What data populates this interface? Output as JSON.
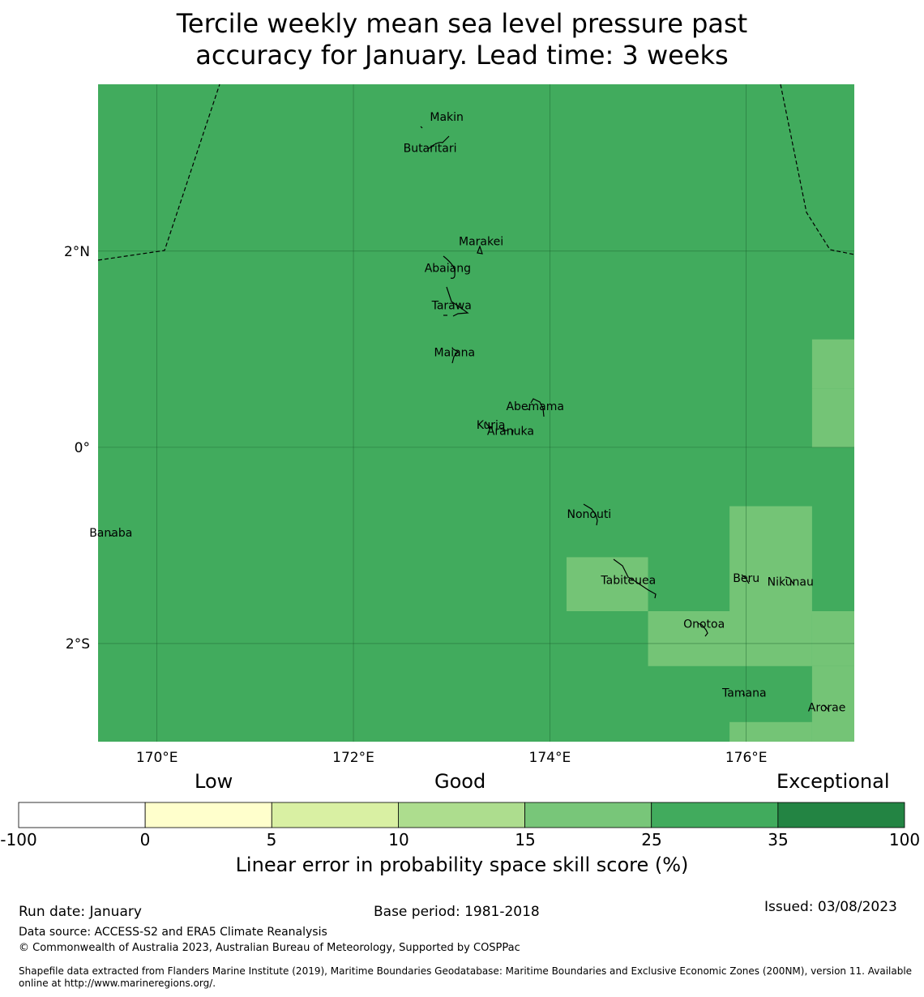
{
  "title": {
    "line1": "Tercile weekly mean sea level pressure past",
    "line2": "accuracy for January. Lead time: 3 weeks"
  },
  "map": {
    "lon_range": [
      169.4,
      177.1
    ],
    "lat_range": [
      -3.0,
      3.7
    ],
    "background_color": "#41ab5d",
    "grid_lines_lon": [
      170,
      172,
      174,
      176
    ],
    "grid_lines_lat": [
      2,
      0,
      -2
    ],
    "lon_labels": [
      "170°E",
      "172°E",
      "174°E",
      "176°E"
    ],
    "lat_labels": [
      "2°N",
      "0°",
      "2°S"
    ],
    "skill_cells": [
      {
        "lon": [
          176.67,
          177.1
        ],
        "lat": [
          0.6,
          1.1
        ],
        "skill_color": "#74c476"
      },
      {
        "lon": [
          176.67,
          177.1
        ],
        "lat": [
          0.0,
          0.6
        ],
        "skill_color": "#74c476"
      },
      {
        "lon": [
          175.83,
          176.67
        ],
        "lat": [
          -1.7,
          -0.6
        ],
        "skill_color": "#74c476"
      },
      {
        "lon": [
          174.17,
          175.0
        ],
        "lat": [
          -1.67,
          -1.12
        ],
        "skill_color": "#74c476"
      },
      {
        "lon": [
          176.67,
          177.1
        ],
        "lat": [
          -2.23,
          -1.67
        ],
        "skill_color": "#74c476"
      },
      {
        "lon": [
          175.0,
          176.67
        ],
        "lat": [
          -2.23,
          -1.67
        ],
        "skill_color": "#74c476"
      },
      {
        "lon": [
          176.67,
          177.1
        ],
        "lat": [
          -3.0,
          -2.23
        ],
        "skill_color": "#74c476"
      },
      {
        "lon": [
          175.83,
          176.67
        ],
        "lat": [
          -3.0,
          -2.8
        ],
        "skill_color": "#74c476"
      }
    ],
    "islands": [
      {
        "name": "Makin",
        "lon": 172.95,
        "lat": 3.37
      },
      {
        "name": "Butaritari",
        "lon": 172.78,
        "lat": 3.05
      },
      {
        "name": "Marakei",
        "lon": 173.3,
        "lat": 2.1
      },
      {
        "name": "Abaiang",
        "lon": 172.96,
        "lat": 1.83
      },
      {
        "name": "Tarawa",
        "lon": 173.0,
        "lat": 1.45
      },
      {
        "name": "Maiana",
        "lon": 173.03,
        "lat": 0.97
      },
      {
        "name": "Abemama",
        "lon": 173.85,
        "lat": 0.42
      },
      {
        "name": "Kuria",
        "lon": 173.4,
        "lat": 0.23
      },
      {
        "name": "Aranuka",
        "lon": 173.6,
        "lat": 0.17
      },
      {
        "name": "Nonouti",
        "lon": 174.4,
        "lat": -0.68
      },
      {
        "name": "Banaba",
        "lon": 169.53,
        "lat": -0.87
      },
      {
        "name": "Tabiteuea",
        "lon": 174.8,
        "lat": -1.35
      },
      {
        "name": "Beru",
        "lon": 176.0,
        "lat": -1.33
      },
      {
        "name": "Nikunau",
        "lon": 176.45,
        "lat": -1.37
      },
      {
        "name": "Onotoa",
        "lon": 175.57,
        "lat": -1.8
      },
      {
        "name": "Tamana",
        "lon": 175.98,
        "lat": -2.5
      },
      {
        "name": "Arorae",
        "lon": 176.82,
        "lat": -2.65
      }
    ]
  },
  "colorbar": {
    "category_labels": {
      "low": "Low",
      "good": "Good",
      "exceptional": "Exceptional"
    },
    "ticks": [
      "-100",
      "0",
      "5",
      "10",
      "15",
      "25",
      "35",
      "100"
    ],
    "colors": [
      "#ffffff",
      "#ffffcc",
      "#d9f0a3",
      "#addd8e",
      "#78c679",
      "#41ab5d",
      "#238443"
    ],
    "label": "Linear error in probability space skill score (%)"
  },
  "footer": {
    "run_date": "Run date: January",
    "base_period": "Base period: 1981-2018",
    "issued": "Issued: 03/08/2023",
    "data_source": "Data source: ACCESS-S2 and ERA5 Climate Reanalysis",
    "copyright": "© Commonwealth of Australia 2023, Australian Bureau of Meteorology, Supported by COSPPac",
    "shapefile_line1": "Shapefile data extracted from Flanders Marine Institute (2019), Maritime Boundaries Geodatabase: Maritime Boundaries and Exclusive Economic Zones (200NM), version 11. Available",
    "shapefile_line2": "online at http://www.marineregions.org/."
  }
}
